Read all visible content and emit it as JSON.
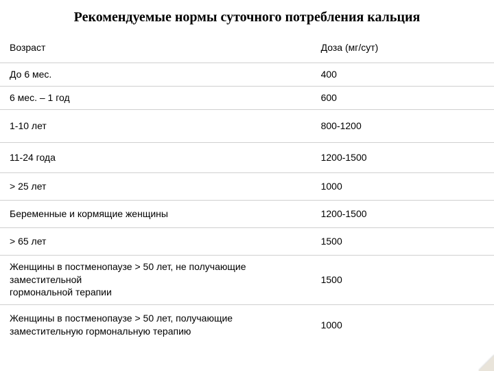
{
  "title": "Рекомендуемые нормы суточного потребления кальция",
  "table": {
    "columns": [
      "Возраст",
      "Доза (мг/сут)"
    ],
    "column_widths_pct": [
      63,
      37
    ],
    "header_fontsize_pt": 11,
    "cell_fontsize_pt": 11,
    "border_color": "#cfcfcf",
    "text_color": "#000000",
    "background_color": "#ffffff",
    "rows": [
      {
        "age": "До 6 мес.",
        "dose": "400",
        "row_class": "h-small"
      },
      {
        "age": "6 мес. – 1 год",
        "dose": "600",
        "row_class": "h-small"
      },
      {
        "age": "1-10 лет",
        "dose": "800-1200",
        "row_class": "h-lg"
      },
      {
        "age": "11-24 года",
        "dose": "1200-1500",
        "row_class": "h-med2"
      },
      {
        "age": "> 25 лет",
        "dose": "1000",
        "row_class": "h-med"
      },
      {
        "age": "Беременные  и кормящие женщины",
        "dose": "1200-1500",
        "row_class": "h-med"
      },
      {
        "age": "> 65 лет",
        "dose": "1500",
        "row_class": "h-med"
      },
      {
        "age": "   Женщины в постменопаузе > 50 лет, не получающие заместительной\nгормональной терапии",
        "dose": "1500",
        "row_class": "h-multi"
      },
      {
        "age": "   Женщины в постменопаузе > 50 лет, получающие заместительную    гормональную терапию",
        "dose": "1000",
        "row_class": "h-multi2 last"
      }
    ]
  },
  "style": {
    "title_font": "Times New Roman",
    "title_fontsize_pt": 15,
    "title_bold": true,
    "body_font": "Arial",
    "corner_fold_color": "#e9e4da"
  }
}
